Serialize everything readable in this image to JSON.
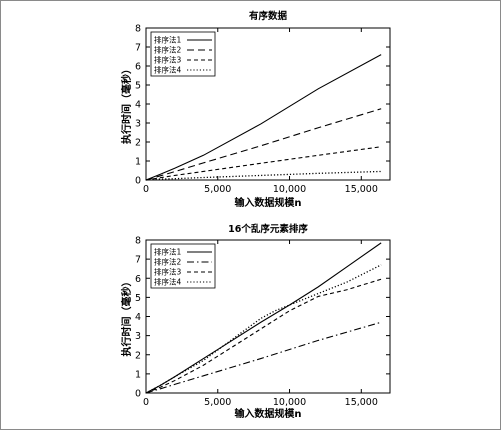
{
  "chart_data": [
    {
      "type": "line",
      "title": "有序数据",
      "xlabel": "输入数据规模n",
      "ylabel": "执行时间（毫秒）",
      "xlim": [
        0,
        17000
      ],
      "ylim": [
        0,
        8
      ],
      "xticks": [
        0,
        5000,
        10000,
        15000
      ],
      "xtick_labels": [
        "0",
        "5,000",
        "10,000",
        "15,000"
      ],
      "yticks": [
        0,
        1,
        2,
        3,
        4,
        5,
        6,
        7,
        8
      ],
      "legend_position": "top-left",
      "grid": false,
      "series": [
        {
          "name": "排序法1",
          "style": "solid",
          "x": [
            0,
            1000,
            2000,
            4000,
            8000,
            12000,
            16384
          ],
          "y": [
            0,
            0.3,
            0.62,
            1.3,
            2.95,
            4.8,
            6.6
          ]
        },
        {
          "name": "排序法2",
          "style": "dashed",
          "x": [
            0,
            1000,
            2000,
            4000,
            8000,
            12000,
            16384
          ],
          "y": [
            0,
            0.22,
            0.44,
            0.9,
            1.8,
            2.75,
            3.75
          ]
        },
        {
          "name": "排序法3",
          "style": "short-dashed",
          "x": [
            0,
            1000,
            2000,
            4000,
            8000,
            12000,
            16384
          ],
          "y": [
            0,
            0.12,
            0.24,
            0.45,
            0.88,
            1.3,
            1.75
          ]
        },
        {
          "name": "排序法4",
          "style": "dotted",
          "x": [
            0,
            1000,
            2000,
            4000,
            8000,
            12000,
            16384
          ],
          "y": [
            0,
            0.05,
            0.07,
            0.13,
            0.24,
            0.35,
            0.45
          ]
        }
      ]
    },
    {
      "type": "line",
      "title": "16个乱序元素排序",
      "xlabel": "输入数据规模n",
      "ylabel": "执行时间（毫秒）",
      "xlim": [
        0,
        17000
      ],
      "ylim": [
        0,
        8
      ],
      "xticks": [
        0,
        5000,
        10000,
        15000
      ],
      "xtick_labels": [
        "0",
        "5,000",
        "10,000",
        "15,000"
      ],
      "yticks": [
        0,
        1,
        2,
        3,
        4,
        5,
        6,
        7,
        8
      ],
      "legend_position": "top-left",
      "grid": false,
      "series": [
        {
          "name": "排序法1",
          "style": "solid",
          "x": [
            0,
            1000,
            2000,
            4000,
            6000,
            8000,
            10000,
            12000,
            14000,
            16384
          ],
          "y": [
            0,
            0.4,
            0.85,
            1.8,
            2.75,
            3.7,
            4.6,
            5.55,
            6.6,
            7.85
          ]
        },
        {
          "name": "排序法2",
          "style": "dash-dot",
          "x": [
            0,
            1000,
            2000,
            4000,
            8000,
            12000,
            16384
          ],
          "y": [
            0,
            0.22,
            0.45,
            0.9,
            1.8,
            2.75,
            3.7
          ]
        },
        {
          "name": "排序法3",
          "style": "short-dashed",
          "x": [
            0,
            1000,
            2000,
            4000,
            6000,
            8000,
            10000,
            12000,
            14000,
            16384
          ],
          "y": [
            0,
            0.3,
            0.65,
            1.45,
            2.4,
            3.35,
            4.3,
            5.05,
            5.4,
            5.95
          ]
        },
        {
          "name": "排序法4",
          "style": "dotted",
          "x": [
            0,
            1000,
            2000,
            4000,
            6000,
            8000,
            9000,
            10000,
            12000,
            14000,
            16384
          ],
          "y": [
            0,
            0.4,
            0.85,
            1.7,
            2.8,
            3.9,
            4.3,
            4.6,
            5.2,
            5.8,
            6.7
          ]
        }
      ]
    }
  ]
}
